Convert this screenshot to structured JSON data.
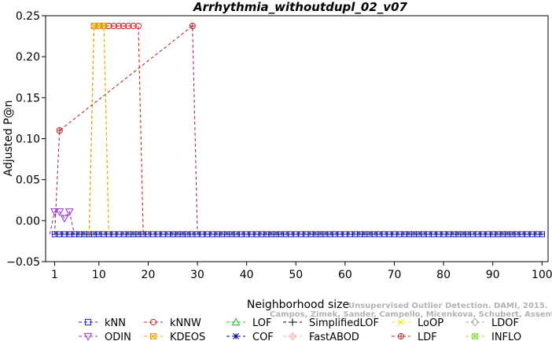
{
  "chart_data": {
    "type": "line",
    "title": "Arrhythmia_withoutdupl_02_v07",
    "xlabel": "Neighborhood size",
    "ylabel": "Adjusted P@n",
    "xlim": [
      1,
      100
    ],
    "ylim": [
      -0.05,
      0.25
    ],
    "xticks": [
      "1",
      "10",
      "20",
      "30",
      "40",
      "50",
      "60",
      "70",
      "80",
      "90",
      "100"
    ],
    "yticks": [
      "−0.05",
      "0.00",
      "0.05",
      "0.10",
      "0.15",
      "0.20",
      "0.25"
    ],
    "baseline": -0.0165,
    "series": [
      {
        "name": "kNN",
        "color": "#1a1adb",
        "marker": "square",
        "points": []
      },
      {
        "name": "kNNW",
        "color": "#d62020",
        "marker": "circle",
        "points": [
          [
            9,
            0.2375
          ],
          [
            10,
            0.2375
          ],
          [
            11,
            0.2375
          ],
          [
            12,
            0.2375
          ],
          [
            13,
            0.2375
          ],
          [
            14,
            0.2375
          ],
          [
            15,
            0.2375
          ],
          [
            16,
            0.2375
          ],
          [
            17,
            0.2375
          ],
          [
            18,
            0.2375
          ]
        ]
      },
      {
        "name": "LOF",
        "color": "#20c020",
        "marker": "triangle",
        "points": []
      },
      {
        "name": "SimplifiedLOF",
        "color": "#000000",
        "marker": "plus",
        "points": []
      },
      {
        "name": "LoOP",
        "color": "#e8e800",
        "marker": "x",
        "points": [
          [
            9,
            0.2375
          ],
          [
            10,
            0.2375
          ],
          [
            11,
            0.2375
          ]
        ]
      },
      {
        "name": "LDOF",
        "color": "#a8a8a8",
        "marker": "diamond",
        "points": []
      },
      {
        "name": "ODIN",
        "color": "#9b30d9",
        "marker": "triangle-down",
        "points": [
          [
            1,
            0.011
          ],
          [
            2,
            0.011
          ],
          [
            3,
            0.003
          ],
          [
            4,
            0.011
          ]
        ]
      },
      {
        "name": "KDEOS",
        "color": "#f0a000",
        "marker": "square-x",
        "points": [
          [
            9,
            0.2375
          ],
          [
            10,
            0.2375
          ],
          [
            11,
            0.2375
          ]
        ]
      },
      {
        "name": "COF",
        "color": "#000088",
        "marker": "asterisk",
        "points": []
      },
      {
        "name": "FastABOD",
        "color": "#ffb0b0",
        "marker": "diamond-plus",
        "points": []
      },
      {
        "name": "LDF",
        "color": "#b03030",
        "marker": "circle-plus",
        "points": [
          [
            2,
            0.11
          ],
          [
            29,
            0.2375
          ]
        ]
      },
      {
        "name": "INFLO",
        "color": "#90e050",
        "marker": "square-star",
        "points": []
      }
    ]
  },
  "watermark": {
    "line1": "Unsupervised Outlier Detection. DAMI, 2015.",
    "line2": "Campos, Zimek, Sander, Campello, Micenkova, Schubert, Assent, Houle"
  }
}
